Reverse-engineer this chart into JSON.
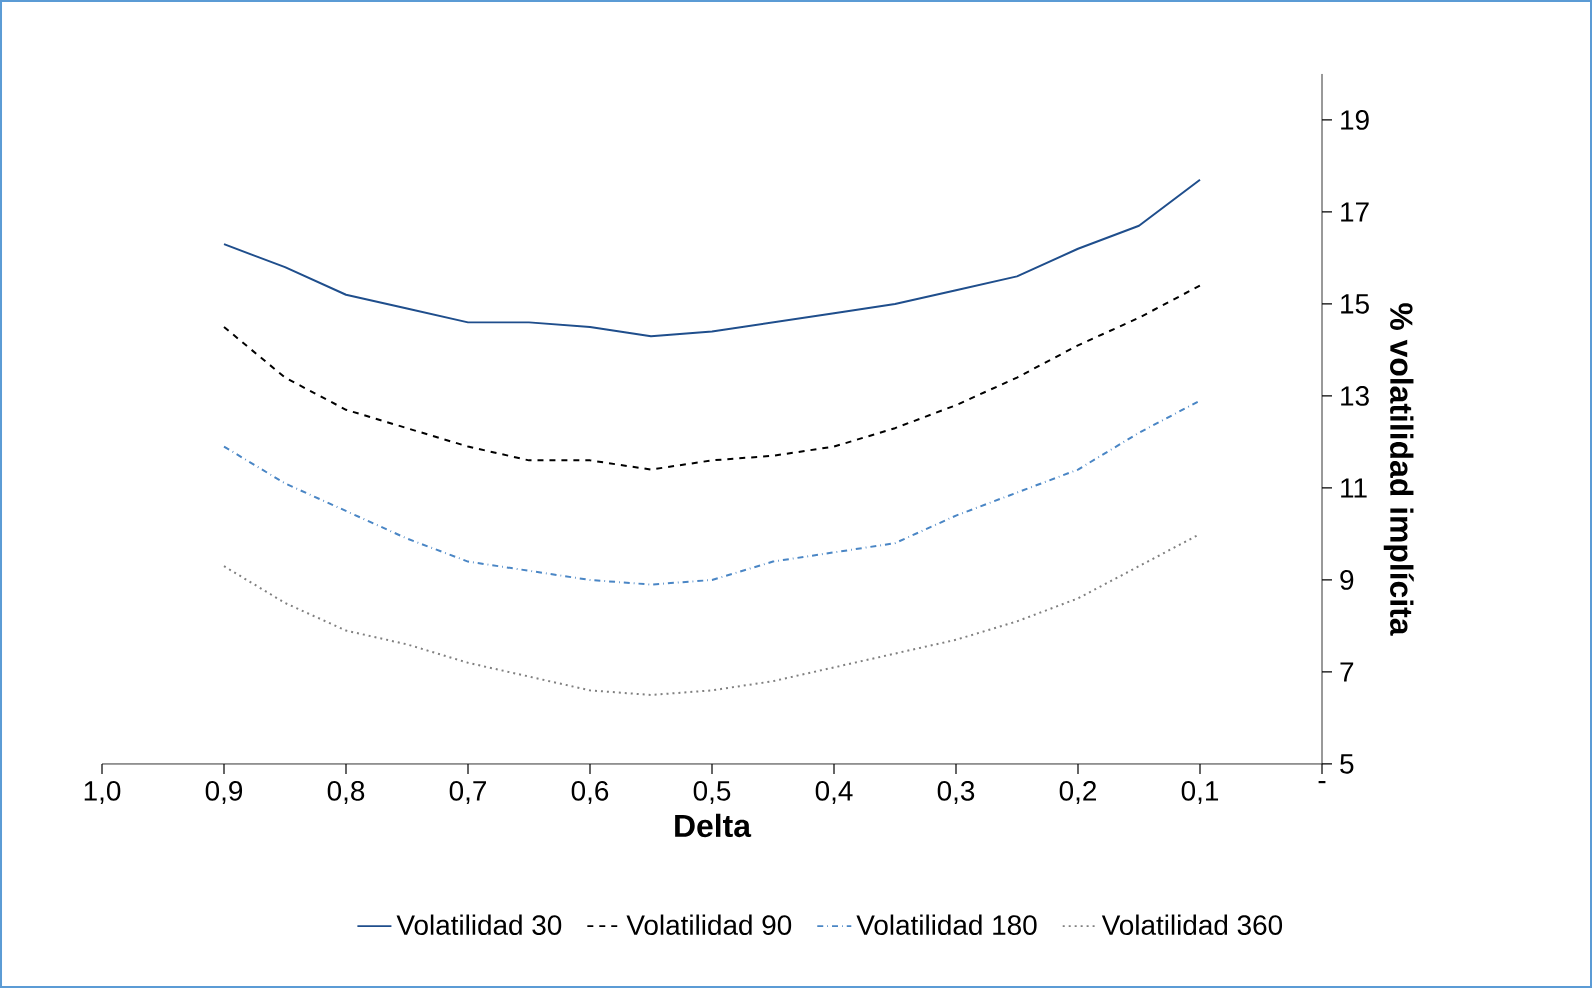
{
  "chart_data": {
    "type": "line",
    "xlabel": "Delta",
    "ylabel": "% volatilidad implícita",
    "xlim": [
      1,
      0
    ],
    "ylim": [
      5,
      20
    ],
    "xticks": [
      {
        "value": 1,
        "label": "1,0"
      },
      {
        "value": 0.9,
        "label": "0,9"
      },
      {
        "value": 0.8,
        "label": "0,8"
      },
      {
        "value": 0.7,
        "label": "0,7"
      },
      {
        "value": 0.6,
        "label": "0,6"
      },
      {
        "value": 0.5,
        "label": "0,5"
      },
      {
        "value": 0.4,
        "label": "0,4"
      },
      {
        "value": 0.3,
        "label": "0,3"
      },
      {
        "value": 0.2,
        "label": "0,2"
      },
      {
        "value": 0.1,
        "label": "0,1"
      },
      {
        "value": 0,
        "label": "-"
      }
    ],
    "yticks": [
      5,
      7,
      9,
      11,
      13,
      15,
      17,
      19
    ],
    "x": [
      0.9,
      0.85,
      0.8,
      0.75,
      0.7,
      0.65,
      0.6,
      0.55,
      0.5,
      0.45,
      0.4,
      0.35,
      0.3,
      0.25,
      0.2,
      0.15,
      0.1
    ],
    "series": [
      {
        "name": "Volatilidad 30",
        "color": "#1f4e8c",
        "line_style": "solid",
        "values": [
          16.3,
          15.8,
          15.2,
          14.9,
          14.6,
          14.6,
          14.5,
          14.3,
          14.4,
          14.6,
          14.8,
          15.0,
          15.3,
          15.6,
          16.2,
          16.7,
          17.7
        ]
      },
      {
        "name": "Volatilidad 90",
        "color": "#000000",
        "line_style": "dashed",
        "values": [
          14.5,
          13.4,
          12.7,
          12.3,
          11.9,
          11.6,
          11.6,
          11.4,
          11.6,
          11.7,
          11.9,
          12.3,
          12.8,
          13.4,
          14.1,
          14.7,
          15.4
        ]
      },
      {
        "name": "Volatilidad 180",
        "color": "#4a86c5",
        "line_style": "dashdot",
        "values": [
          11.9,
          11.1,
          10.5,
          9.9,
          9.4,
          9.2,
          9.0,
          8.9,
          9.0,
          9.4,
          9.6,
          9.8,
          10.4,
          10.9,
          11.4,
          12.2,
          12.9
        ]
      },
      {
        "name": "Volatilidad 360",
        "color": "#808080",
        "line_style": "dotted",
        "values": [
          9.3,
          8.5,
          7.9,
          7.6,
          7.2,
          6.9,
          6.6,
          6.5,
          6.6,
          6.8,
          7.1,
          7.4,
          7.7,
          8.1,
          8.6,
          9.3,
          10.0
        ]
      }
    ],
    "grid": false,
    "legend": "bottom",
    "marker": "none"
  }
}
